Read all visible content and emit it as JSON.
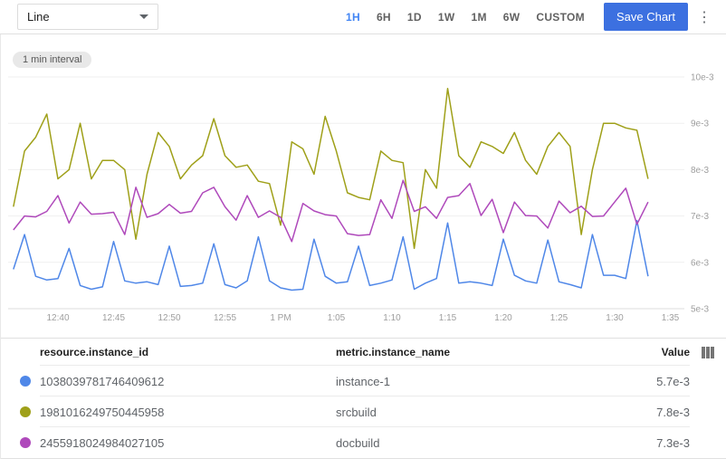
{
  "toolbar": {
    "chart_type_selector": {
      "value": "Line"
    },
    "time_ranges": [
      {
        "label": "1H",
        "active": true
      },
      {
        "label": "6H",
        "active": false
      },
      {
        "label": "1D",
        "active": false
      },
      {
        "label": "1W",
        "active": false
      },
      {
        "label": "1M",
        "active": false
      },
      {
        "label": "6W",
        "active": false
      },
      {
        "label": "CUSTOM",
        "active": false
      }
    ],
    "save_button_label": "Save Chart",
    "accent_color": "#4285f4",
    "save_button_color": "#3c70e0"
  },
  "chart": {
    "interval_badge": "1 min interval"
  },
  "chart_data": {
    "type": "line",
    "title": "",
    "xlabel": "",
    "ylabel": "",
    "x_tick_labels": [
      "12:40",
      "12:45",
      "12:50",
      "12:55",
      "1 PM",
      "1:05",
      "1:10",
      "1:15",
      "1:20",
      "1:25",
      "1:30",
      "1:35"
    ],
    "y_tick_labels": [
      "10e-3",
      "9e-3",
      "8e-3",
      "7e-3",
      "6e-3",
      "5e-3"
    ],
    "ylim": [
      0.005,
      0.01
    ],
    "values_unit": "1e-3",
    "grid": true,
    "legend_position": "table-below",
    "x": [
      "12:36",
      "12:37",
      "12:38",
      "12:39",
      "12:40",
      "12:41",
      "12:42",
      "12:43",
      "12:44",
      "12:45",
      "12:46",
      "12:47",
      "12:48",
      "12:49",
      "12:50",
      "12:51",
      "12:52",
      "12:53",
      "12:54",
      "12:55",
      "12:56",
      "12:57",
      "12:58",
      "12:59",
      "1:00",
      "1:01",
      "1:02",
      "1:03",
      "1:04",
      "1:05",
      "1:06",
      "1:07",
      "1:08",
      "1:09",
      "1:10",
      "1:11",
      "1:12",
      "1:13",
      "1:14",
      "1:15",
      "1:16",
      "1:17",
      "1:18",
      "1:19",
      "1:20",
      "1:21",
      "1:22",
      "1:23",
      "1:24",
      "1:25",
      "1:26",
      "1:27",
      "1:28",
      "1:29",
      "1:30",
      "1:31",
      "1:32",
      "1:33"
    ],
    "series": [
      {
        "name": "instance-1",
        "resource_instance_id": "1038039781746409612",
        "color": "#4f87e8",
        "latest_value": "5.7e-3",
        "values": [
          5.85,
          6.6,
          5.7,
          5.62,
          5.65,
          6.3,
          5.5,
          5.42,
          5.47,
          6.45,
          5.6,
          5.55,
          5.58,
          5.52,
          6.35,
          5.48,
          5.5,
          5.55,
          6.4,
          5.52,
          5.45,
          5.6,
          6.55,
          5.6,
          5.45,
          5.4,
          5.42,
          6.5,
          5.7,
          5.55,
          5.58,
          6.35,
          5.5,
          5.55,
          5.62,
          6.55,
          5.42,
          5.55,
          5.65,
          6.85,
          5.55,
          5.58,
          5.55,
          5.5,
          6.5,
          5.72,
          5.6,
          5.55,
          6.48,
          5.58,
          5.52,
          5.45,
          6.6,
          5.72,
          5.72,
          5.65,
          6.9,
          5.7
        ]
      },
      {
        "name": "srcbuild",
        "resource_instance_id": "1981016249750445958",
        "color": "#9fa019",
        "latest_value": "7.8e-3",
        "values": [
          7.2,
          8.4,
          8.7,
          9.2,
          7.8,
          8.0,
          9.0,
          7.8,
          8.2,
          8.2,
          8.0,
          6.5,
          7.9,
          8.8,
          8.5,
          7.8,
          8.1,
          8.3,
          9.1,
          8.3,
          8.05,
          8.1,
          7.75,
          7.7,
          6.8,
          8.6,
          8.45,
          7.9,
          9.15,
          8.4,
          7.5,
          7.4,
          7.35,
          8.4,
          8.2,
          8.15,
          6.3,
          8.0,
          7.6,
          9.75,
          8.3,
          8.05,
          8.6,
          8.5,
          8.35,
          8.8,
          8.2,
          7.9,
          8.5,
          8.8,
          8.5,
          6.6,
          8.0,
          9.0,
          9.0,
          8.9,
          8.85,
          7.8
        ]
      },
      {
        "name": "docbuild",
        "resource_instance_id": "2455918024984027105",
        "color": "#af49bb",
        "latest_value": "7.3e-3",
        "values": [
          6.7,
          7.0,
          6.98,
          7.1,
          7.44,
          6.85,
          7.3,
          7.04,
          7.05,
          7.08,
          6.6,
          7.62,
          6.97,
          7.05,
          7.25,
          7.06,
          7.1,
          7.5,
          7.62,
          7.2,
          6.91,
          7.44,
          6.97,
          7.11,
          6.97,
          6.45,
          7.27,
          7.11,
          7.03,
          7.0,
          6.62,
          6.58,
          6.6,
          7.35,
          6.95,
          7.77,
          7.1,
          7.2,
          6.95,
          7.4,
          7.44,
          7.7,
          7.01,
          7.36,
          6.64,
          7.3,
          7.01,
          7.0,
          6.74,
          7.32,
          7.07,
          7.21,
          6.99,
          7.0,
          7.3,
          7.6,
          6.82,
          7.3
        ]
      }
    ]
  },
  "table": {
    "headers": {
      "id": "resource.instance_id",
      "name": "metric.instance_name",
      "value": "Value"
    },
    "rows": [
      {
        "id": "1038039781746409612",
        "name": "instance-1",
        "value": "5.7e-3"
      },
      {
        "id": "1981016249750445958",
        "name": "srcbuild",
        "value": "7.8e-3"
      },
      {
        "id": "2455918024984027105",
        "name": "docbuild",
        "value": "7.3e-3"
      }
    ]
  }
}
